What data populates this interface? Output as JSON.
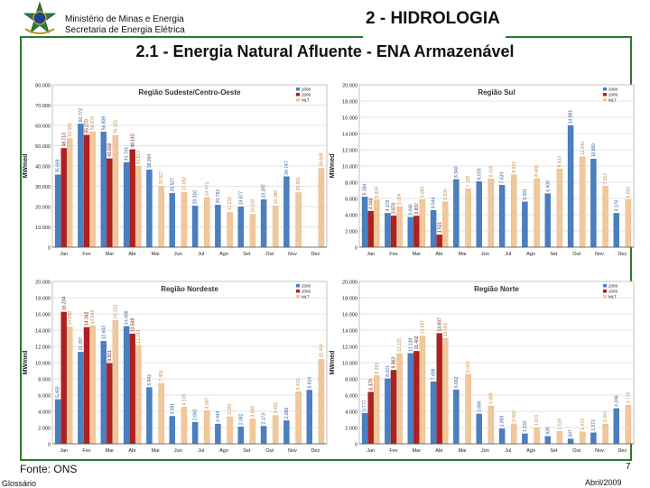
{
  "header": {
    "ministry_line1": "Ministério de Minas e Energia",
    "ministry_line2": "Secretaria de Energia Elétrica",
    "section_title": "2 - HIDROLOGIA",
    "subtitle": "2.1 - Energia Natural Afluente - ENA Armazenável"
  },
  "footer": {
    "source": "Fonte: ONS",
    "page_number": "7",
    "glossary_link": "Glossário",
    "date": "Abril/2009"
  },
  "colors": {
    "series_2008": "#4a7fc1",
    "series_2009": "#b02020",
    "series_mlt": "#f2c79a",
    "frame": "#2a7a2a"
  },
  "chart_data": [
    {
      "type": "bar",
      "title": "Região Sudeste/Centro-Oeste",
      "ylabel": "MWmed",
      "ylim": [
        0,
        80000
      ],
      "yticks": [
        0,
        10000,
        20000,
        30000,
        40000,
        50000,
        60000,
        70000,
        80000
      ],
      "ytick_labels": [
        "0",
        "10.000",
        "20.000",
        "30.000",
        "40.000",
        "50.000",
        "60.000",
        "70.000",
        "80.000"
      ],
      "categories": [
        "Jan",
        "Fev",
        "Mar",
        "Abr",
        "Mai",
        "Jun",
        "Jul",
        "Ago",
        "Set",
        "Out",
        "Nov",
        "Dez"
      ],
      "series": [
        {
          "name": "2008",
          "values": [
            35669,
            60772,
            56809,
            41741,
            38094,
            26527,
            20310,
            20782,
            19877,
            23397,
            34747,
            null
          ],
          "labels": [
            "35.669",
            "60.772",
            "56.809",
            "41.741",
            "38.094",
            "26.527",
            "20.310",
            "20.782",
            "19.877",
            "23.397",
            "34.747",
            ""
          ]
        },
        {
          "name": "2009",
          "values": [
            48713,
            55270,
            43602,
            48142,
            null,
            null,
            null,
            null,
            null,
            null,
            null,
            null
          ],
          "labels": [
            "48.713",
            "55.270",
            "43.602",
            "48.142",
            "",
            "",
            "",
            "",
            "",
            "",
            "",
            ""
          ]
        },
        {
          "name": "MLT",
          "values": [
            53581,
            56870,
            55115,
            39813,
            29927,
            27052,
            24471,
            17216,
            16103,
            20386,
            26891,
            38848
          ],
          "labels": [
            "53.581",
            "56.870",
            "55.115",
            "39.813",
            "29.927",
            "27.052",
            "24.471",
            "17.216",
            "16.103",
            "20.386",
            "26.891",
            "38.848"
          ]
        }
      ]
    },
    {
      "type": "bar",
      "title": "Região Sul",
      "ylabel": "MWmed",
      "ylim": [
        0,
        20000
      ],
      "yticks": [
        0,
        2000,
        4000,
        6000,
        8000,
        10000,
        12000,
        14000,
        16000,
        18000,
        20000
      ],
      "ytick_labels": [
        "0",
        "2.000",
        "4.000",
        "6.000",
        "8.000",
        "10.000",
        "12.000",
        "14.000",
        "16.000",
        "18.000",
        "20.000"
      ],
      "categories": [
        "Jan",
        "Fev",
        "Mar",
        "Abr",
        "Mai",
        "Jun",
        "Jul",
        "Ago",
        "Set",
        "Out",
        "Nov",
        "Dez"
      ],
      "series": [
        {
          "name": "2008",
          "values": [
            6184,
            4178,
            3696,
            4544,
            8340,
            8078,
            7634,
            5591,
            6600,
            14981,
            10860,
            4178
          ],
          "labels": [
            "6.184",
            "4.178",
            "3.696",
            "4.544",
            "8.340",
            "8.078",
            "7.634",
            "5.591",
            "6.600",
            "14.981",
            "10.860",
            "4.178"
          ]
        },
        {
          "name": "2009",
          "values": [
            4446,
            3870,
            3837,
            1521,
            null,
            null,
            null,
            null,
            null,
            null,
            null,
            null
          ],
          "labels": [
            "4.446",
            "3.870",
            "3.837",
            "1.521",
            "",
            "",
            "",
            "",
            "",
            "",
            "",
            ""
          ]
        },
        {
          "name": "MLT",
          "values": [
            5824,
            5004,
            5865,
            5600,
            7185,
            8419,
            8931,
            8468,
            9624,
            11140,
            7512,
            5852
          ],
          "labels": [
            "5.824",
            "5.004",
            "5.865",
            "5.600",
            "7.185",
            "8.419",
            "8.931",
            "8.468",
            "9.624",
            "11.140",
            "7.512",
            "5.852"
          ]
        }
      ]
    },
    {
      "type": "bar",
      "title": "Região Nordeste",
      "ylabel": "MWmed",
      "ylim": [
        0,
        20000
      ],
      "yticks": [
        0,
        2000,
        4000,
        6000,
        8000,
        10000,
        12000,
        14000,
        16000,
        18000,
        20000
      ],
      "ytick_labels": [
        "0",
        "2.000",
        "4.000",
        "6.000",
        "8.000",
        "10.000",
        "12.000",
        "14.000",
        "16.000",
        "18.000",
        "20.000"
      ],
      "categories": [
        "Jan",
        "Fev",
        "Mar",
        "Abr",
        "Mai",
        "Jun",
        "Jul",
        "Ago",
        "Set",
        "Out",
        "Nov",
        "Dez"
      ],
      "series": [
        {
          "name": "2008",
          "values": [
            5459,
            11287,
            12643,
            14468,
            6942,
            3391,
            2660,
            2444,
            2092,
            2173,
            2866,
            6614
          ],
          "labels": [
            "5.459",
            "11.287",
            "12.643",
            "14.468",
            "6.942",
            "3.391",
            "2.660",
            "2.444",
            "2.092",
            "2.173",
            "2.866",
            "6.614"
          ]
        },
        {
          "name": "2009",
          "values": [
            16234,
            14342,
            9921,
            13548,
            null,
            null,
            null,
            null,
            null,
            null,
            null,
            null
          ],
          "labels": [
            "16.234",
            "14.342",
            "9.921",
            "13.548",
            "",
            "",
            "",
            "",
            "",
            "",
            "",
            ""
          ]
        },
        {
          "name": "MLT",
          "values": [
            14398,
            14548,
            15223,
            12141,
            7456,
            4515,
            4097,
            3342,
            3069,
            3492,
            6419,
            10404
          ],
          "labels": [
            "14.398",
            "14.548",
            "15.223",
            "12.141",
            "7.456",
            "4.515",
            "4.097",
            "3.342",
            "3.069",
            "3.492",
            "6.419",
            "10.404"
          ]
        }
      ]
    },
    {
      "type": "bar",
      "title": "Região Norte",
      "ylabel": "MWmed",
      "ylim": [
        0,
        20000
      ],
      "yticks": [
        0,
        2000,
        4000,
        6000,
        8000,
        10000,
        12000,
        14000,
        16000,
        18000,
        20000
      ],
      "ytick_labels": [
        "0",
        "2.000",
        "4.000",
        "6.000",
        "8.000",
        "10.000",
        "12.000",
        "14.000",
        "16.000",
        "18.000",
        "20.000"
      ],
      "categories": [
        "Jan",
        "Fev",
        "Mar",
        "Abr",
        "Mai",
        "Jun",
        "Jul",
        "Ago",
        "Set",
        "Out",
        "Nov",
        "Dez"
      ],
      "series": [
        {
          "name": "2008",
          "values": [
            3777,
            8021,
            11138,
            7659,
            6662,
            3686,
            1869,
            1232,
            935,
            607,
            1372,
            4346
          ],
          "labels": [
            "3.777",
            "8.021",
            "11.138",
            "7.659",
            "6.662",
            "3.686",
            "1.869",
            "1.232",
            "935",
            "607",
            "1.372",
            "4.346"
          ]
        },
        {
          "name": "2009",
          "values": [
            6379,
            9063,
            11402,
            13607,
            null,
            null,
            null,
            null,
            null,
            null,
            null,
            null
          ],
          "labels": [
            "6.379",
            "9.063",
            "11.402",
            "13.607",
            "",
            "",
            "",
            "",
            "",
            "",
            "",
            ""
          ]
        },
        {
          "name": "MLT",
          "values": [
            8393,
            11125,
            13287,
            13001,
            8561,
            4669,
            2460,
            1970,
            1519,
            1472,
            2447,
            4776
          ],
          "labels": [
            "8.393",
            "11.125",
            "13.287",
            "13.001",
            "8.561",
            "4.669",
            "2.460",
            "1.970",
            "1.519",
            "1.472",
            "2.447",
            "4.776"
          ]
        }
      ]
    }
  ]
}
